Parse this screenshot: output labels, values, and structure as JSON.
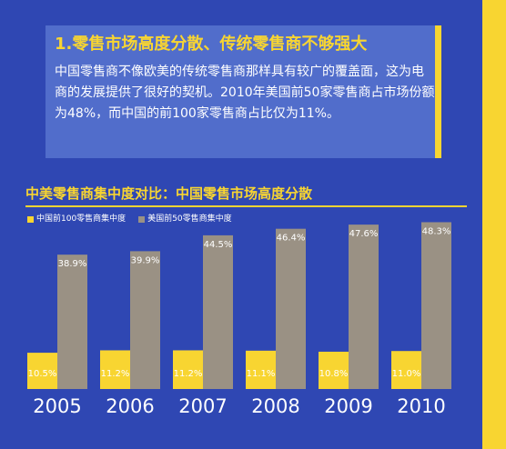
{
  "panel": {
    "title": "1.零售市场高度分散、传统零售商不够强大",
    "body": "中国零售商不像欧美的传统零售商那样具有较广的覆盖面，这为电商的发展提供了很好的契机。2010年美国前50家零售商占市场份额为48%，而中国的前100家零售商占比仅为11%。"
  },
  "colors": {
    "background": "#2f47b3",
    "panel": "#516dcb",
    "accent_yellow": "#f8d531",
    "gray_bar": "#9a9184",
    "white": "#ffffff"
  },
  "chart_data": {
    "type": "bar",
    "title": "中美零售商集中度对比：中国零售市场高度分散",
    "categories": [
      "2005",
      "2006",
      "2007",
      "2008",
      "2009",
      "2010"
    ],
    "series": [
      {
        "name": "中国前100零售商集中度",
        "values": [
          10.5,
          11.2,
          11.2,
          11.1,
          10.8,
          11.0
        ],
        "labels": [
          "10.5%",
          "11.2%",
          "11.2%",
          "11.1%",
          "10.8%",
          "11.0%"
        ],
        "color": "#f8d531"
      },
      {
        "name": "美国前50零售商集中度",
        "values": [
          38.9,
          39.9,
          44.5,
          46.4,
          47.6,
          48.3
        ],
        "labels": [
          "38.9%",
          "39.9%",
          "44.5%",
          "46.4%",
          "47.6%",
          "48.3%"
        ],
        "color": "#9a9184"
      }
    ],
    "ylim": [
      0,
      50
    ],
    "grid": false,
    "legend_position": "top-left",
    "xlabel": "",
    "ylabel": ""
  }
}
